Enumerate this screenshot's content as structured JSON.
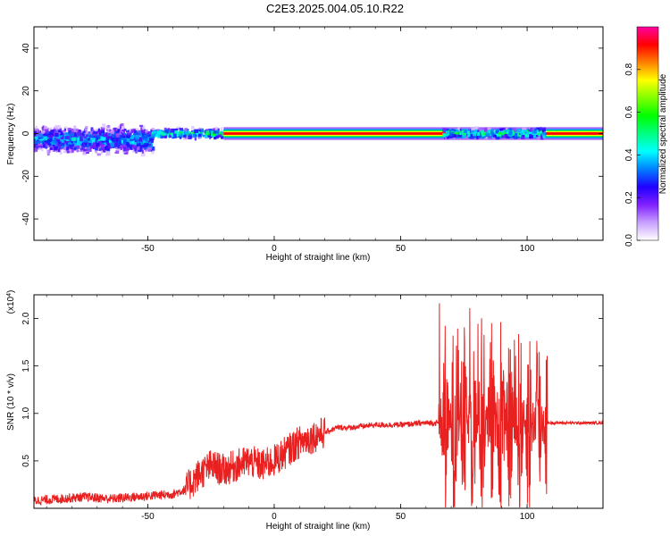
{
  "title": "C2E3.2025.004.05.10.R22",
  "chart_data": [
    {
      "type": "heatmap",
      "xlabel": "Height of straight line (km)",
      "ylabel": "Frequency (Hz)",
      "xlim": [
        -95,
        130
      ],
      "ylim": [
        -50,
        50
      ],
      "xticks": [
        "-50",
        "0",
        "50",
        "100"
      ],
      "xtick_values": [
        -50,
        0,
        50,
        100
      ],
      "yticks": [
        "-40",
        "-20",
        "0",
        "20",
        "40"
      ],
      "ytick_values": [
        -40,
        -20,
        0,
        20,
        40
      ],
      "colorbar": {
        "label": "Normalized spectral amplitude",
        "range": [
          0,
          1
        ],
        "ticks": [
          "0.0",
          "0.2",
          "0.4",
          "0.6",
          "0.8"
        ],
        "tick_values": [
          0.0,
          0.2,
          0.4,
          0.6,
          0.8
        ],
        "colors": [
          "#ffffff",
          "#c8a0ff",
          "#8020ff",
          "#2000ff",
          "#0080ff",
          "#00ffff",
          "#00ff80",
          "#00ff00",
          "#80ff00",
          "#ffff00",
          "#ff8000",
          "#ff0000",
          "#ff00a0"
        ]
      },
      "regions": [
        {
          "x": [
            -95,
            -48
          ],
          "center_freq": -3,
          "spread": 8,
          "amplitude": 0.35
        },
        {
          "x": [
            -48,
            -20
          ],
          "center_freq": 0,
          "spread": 3,
          "amplitude": 0.5
        },
        {
          "x": [
            -20,
            130
          ],
          "center_freq": 0,
          "spread": 1,
          "amplitude": 0.95
        },
        {
          "x": [
            67,
            107
          ],
          "center_freq": 0,
          "spread": 3,
          "amplitude": 0.5
        }
      ]
    },
    {
      "type": "line",
      "xlabel": "Height of straight line (km)",
      "ylabel": "SNR (10 * v/v)",
      "y_multiplier": "(x10",
      "y_multiplier_exp": "4",
      "y_multiplier_close": ")",
      "xlim": [
        -95,
        130
      ],
      "ylim": [
        0,
        2.25
      ],
      "xticks": [
        "-50",
        "0",
        "50",
        "100"
      ],
      "xtick_values": [
        -50,
        0,
        50,
        100
      ],
      "yticks": [
        "0.5",
        "1.0",
        "1.5",
        "2.0"
      ],
      "ytick_values": [
        0.5,
        1.0,
        1.5,
        2.0
      ],
      "color": "#e82020",
      "series": [
        {
          "x": [
            -95,
            -85,
            -75,
            -65,
            -55,
            -45,
            -40,
            -35,
            -30,
            -25,
            -20,
            -15,
            -10,
            -5,
            0,
            5,
            10,
            15,
            20,
            25,
            30,
            40,
            50,
            60,
            65,
            70,
            72,
            75,
            78,
            80,
            85,
            90,
            95,
            100,
            104,
            106,
            107,
            110,
            120,
            130
          ],
          "values": [
            0.08,
            0.1,
            0.12,
            0.1,
            0.12,
            0.14,
            0.15,
            0.2,
            0.35,
            0.45,
            0.4,
            0.45,
            0.5,
            0.45,
            0.5,
            0.6,
            0.7,
            0.75,
            0.8,
            0.85,
            0.85,
            0.88,
            0.88,
            0.9,
            0.9,
            0.95,
            0.8,
            1.1,
            0.7,
            1.2,
            0.8,
            1.3,
            0.8,
            1.4,
            0.9,
            1.5,
            0.9,
            0.9,
            0.9,
            0.9
          ]
        }
      ]
    }
  ]
}
